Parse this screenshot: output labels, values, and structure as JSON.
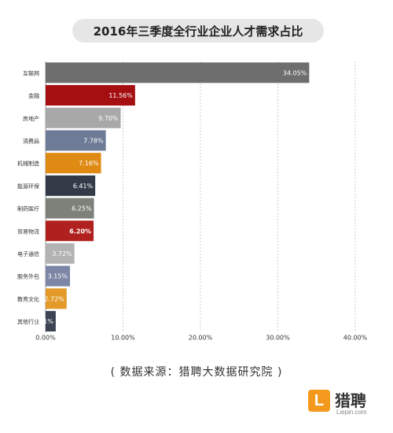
{
  "title": "2016年三季度全行业企业人才需求占比",
  "source": "( 数据来源：猎聘大数据研究院 )",
  "logo": {
    "badge": "L",
    "name": "猎聘",
    "url": "Liepin.com"
  },
  "chart_data": {
    "type": "bar",
    "orientation": "horizontal",
    "title": "2016年三季度全行业企业人才需求占比",
    "categories": [
      "互联网",
      "金融",
      "房地产",
      "消费品",
      "机械制造",
      "能源环保",
      "制药医疗",
      "贸易物流",
      "电子通信",
      "服务外包",
      "教育文化",
      "其他行业"
    ],
    "values": [
      34.05,
      11.56,
      9.7,
      7.78,
      7.16,
      6.41,
      6.25,
      6.2,
      3.72,
      3.15,
      2.72,
      1.31
    ],
    "value_labels": [
      "34.05%",
      "11.56%",
      "9.70%",
      "7.78%",
      "7.16%",
      "6.41%",
      "6.25%",
      "6.20%",
      "3.72%",
      "3.15%",
      "2.72%",
      "1.31%"
    ],
    "colors": [
      "#6e6e6e",
      "#a50f12",
      "#a8a8a8",
      "#6d7b96",
      "#df8a12",
      "#333a48",
      "#7c8279",
      "#b0201e",
      "#b3b3b3",
      "#7d87a5",
      "#e39a28",
      "#3c4352"
    ],
    "xlim": [
      0,
      40
    ],
    "xticks": [
      "0.00%",
      "10.00%",
      "20.00%",
      "30.00%",
      "40.00%"
    ],
    "xtick_values": [
      0,
      10,
      20,
      30,
      40
    ],
    "grid": "vertical-dashed",
    "xlabel": "",
    "ylabel": ""
  }
}
